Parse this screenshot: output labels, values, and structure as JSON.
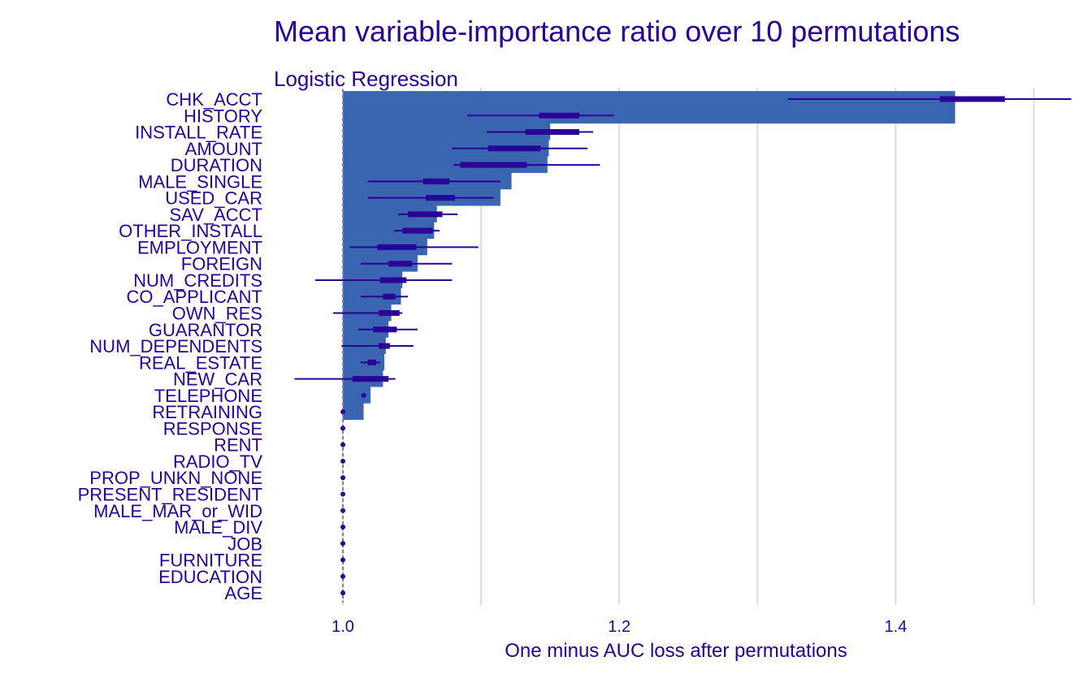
{
  "chart_data": {
    "type": "bar",
    "title": "Mean variable-importance ratio over 10 permutations",
    "subtitle": "Logistic Regression",
    "xlabel": "One minus AUC loss after permutations",
    "xlim": [
      0.95,
      1.535
    ],
    "xticks": [
      1.0,
      1.2,
      1.4
    ],
    "xtick_labels": [
      "1.0",
      "1.2",
      "1.4"
    ],
    "grid": true,
    "colors": {
      "bar": "#3a65b0",
      "interval": "#2a0096",
      "text": "#2a0096",
      "grid": "#dcdcdc"
    },
    "baseline": 1.0,
    "variables": [
      {
        "name": "CHK_ACCT",
        "mean": 1.443,
        "q_lo": 1.432,
        "q_hi": 1.479,
        "min": 1.322,
        "max": 1.527
      },
      {
        "name": "HISTORY",
        "mean": 1.15,
        "q_lo": 1.142,
        "q_hi": 1.171,
        "min": 1.09,
        "max": 1.196
      },
      {
        "name": "INSTALL_RATE",
        "mean": 1.149,
        "q_lo": 1.132,
        "q_hi": 1.171,
        "min": 1.104,
        "max": 1.181
      },
      {
        "name": "AMOUNT",
        "mean": 1.148,
        "q_lo": 1.105,
        "q_hi": 1.143,
        "min": 1.079,
        "max": 1.177
      },
      {
        "name": "DURATION",
        "mean": 1.122,
        "q_lo": 1.085,
        "q_hi": 1.133,
        "min": 1.08,
        "max": 1.186
      },
      {
        "name": "MALE_SINGLE",
        "mean": 1.114,
        "q_lo": 1.058,
        "q_hi": 1.077,
        "min": 1.018,
        "max": 1.114
      },
      {
        "name": "USED_CAR",
        "mean": 1.068,
        "q_lo": 1.06,
        "q_hi": 1.081,
        "min": 1.018,
        "max": 1.109
      },
      {
        "name": "SAV_ACCT",
        "mean": 1.066,
        "q_lo": 1.047,
        "q_hi": 1.072,
        "min": 1.04,
        "max": 1.083
      },
      {
        "name": "OTHER_INSTALL",
        "mean": 1.061,
        "q_lo": 1.043,
        "q_hi": 1.065,
        "min": 1.037,
        "max": 1.07
      },
      {
        "name": "EMPLOYMENT",
        "mean": 1.054,
        "q_lo": 1.025,
        "q_hi": 1.053,
        "min": 1.005,
        "max": 1.098
      },
      {
        "name": "FOREIGN",
        "mean": 1.043,
        "q_lo": 1.033,
        "q_hi": 1.05,
        "min": 1.013,
        "max": 1.079
      },
      {
        "name": "NUM_CREDITS",
        "mean": 1.042,
        "q_lo": 1.027,
        "q_hi": 1.046,
        "min": 0.98,
        "max": 1.079
      },
      {
        "name": "CO_APPLICANT",
        "mean": 1.035,
        "q_lo": 1.029,
        "q_hi": 1.038,
        "min": 1.013,
        "max": 1.047
      },
      {
        "name": "OWN_RES",
        "mean": 1.033,
        "q_lo": 1.026,
        "q_hi": 1.041,
        "min": 0.993,
        "max": 1.043
      },
      {
        "name": "GUARANTOR",
        "mean": 1.031,
        "q_lo": 1.022,
        "q_hi": 1.039,
        "min": 1.011,
        "max": 1.054
      },
      {
        "name": "NUM_DEPENDENTS",
        "mean": 1.03,
        "q_lo": 1.026,
        "q_hi": 1.034,
        "min": 0.999,
        "max": 1.051
      },
      {
        "name": "REAL_ESTATE",
        "mean": 1.029,
        "q_lo": 1.018,
        "q_hi": 1.024,
        "min": 1.013,
        "max": 1.027
      },
      {
        "name": "NEW_CAR",
        "mean": 1.02,
        "q_lo": 1.007,
        "q_hi": 1.033,
        "min": 0.965,
        "max": 1.038
      },
      {
        "name": "TELEPHONE",
        "mean": 1.015,
        "q_lo": 1.0,
        "q_hi": 1.001,
        "min": 0.999,
        "max": 1.001
      },
      {
        "name": "RETRAINING",
        "mean": 1.0,
        "q_lo": 1.0,
        "q_hi": 1.0,
        "min": 1.0,
        "max": 1.0
      },
      {
        "name": "RESPONSE",
        "mean": 1.0,
        "q_lo": 1.0,
        "q_hi": 1.0,
        "min": 1.0,
        "max": 1.0
      },
      {
        "name": "RENT",
        "mean": 1.0,
        "q_lo": 1.0,
        "q_hi": 1.0,
        "min": 1.0,
        "max": 1.0
      },
      {
        "name": "RADIO_TV",
        "mean": 1.0,
        "q_lo": 1.0,
        "q_hi": 1.0,
        "min": 1.0,
        "max": 1.0
      },
      {
        "name": "PROP_UNKN_NONE",
        "mean": 1.0,
        "q_lo": 1.0,
        "q_hi": 1.0,
        "min": 1.0,
        "max": 1.0
      },
      {
        "name": "PRESENT_RESIDENT",
        "mean": 1.0,
        "q_lo": 1.0,
        "q_hi": 1.0,
        "min": 1.0,
        "max": 1.0
      },
      {
        "name": "MALE_MAR_or_WID",
        "mean": 1.0,
        "q_lo": 1.0,
        "q_hi": 1.0,
        "min": 1.0,
        "max": 1.0
      },
      {
        "name": "MALE_DIV",
        "mean": 1.0,
        "q_lo": 1.0,
        "q_hi": 1.0,
        "min": 1.0,
        "max": 1.0
      },
      {
        "name": "JOB",
        "mean": 1.0,
        "q_lo": 1.0,
        "q_hi": 1.0,
        "min": 1.0,
        "max": 1.0
      },
      {
        "name": "FURNITURE",
        "mean": 1.0,
        "q_lo": 1.0,
        "q_hi": 1.0,
        "min": 1.0,
        "max": 1.0
      },
      {
        "name": "EDUCATION",
        "mean": 1.0,
        "q_lo": 1.0,
        "q_hi": 1.0,
        "min": 1.0,
        "max": 1.0
      },
      {
        "name": "AGE",
        "mean": 1.0,
        "q_lo": 1.0,
        "q_hi": 1.0,
        "min": 1.0,
        "max": 1.0
      }
    ]
  }
}
